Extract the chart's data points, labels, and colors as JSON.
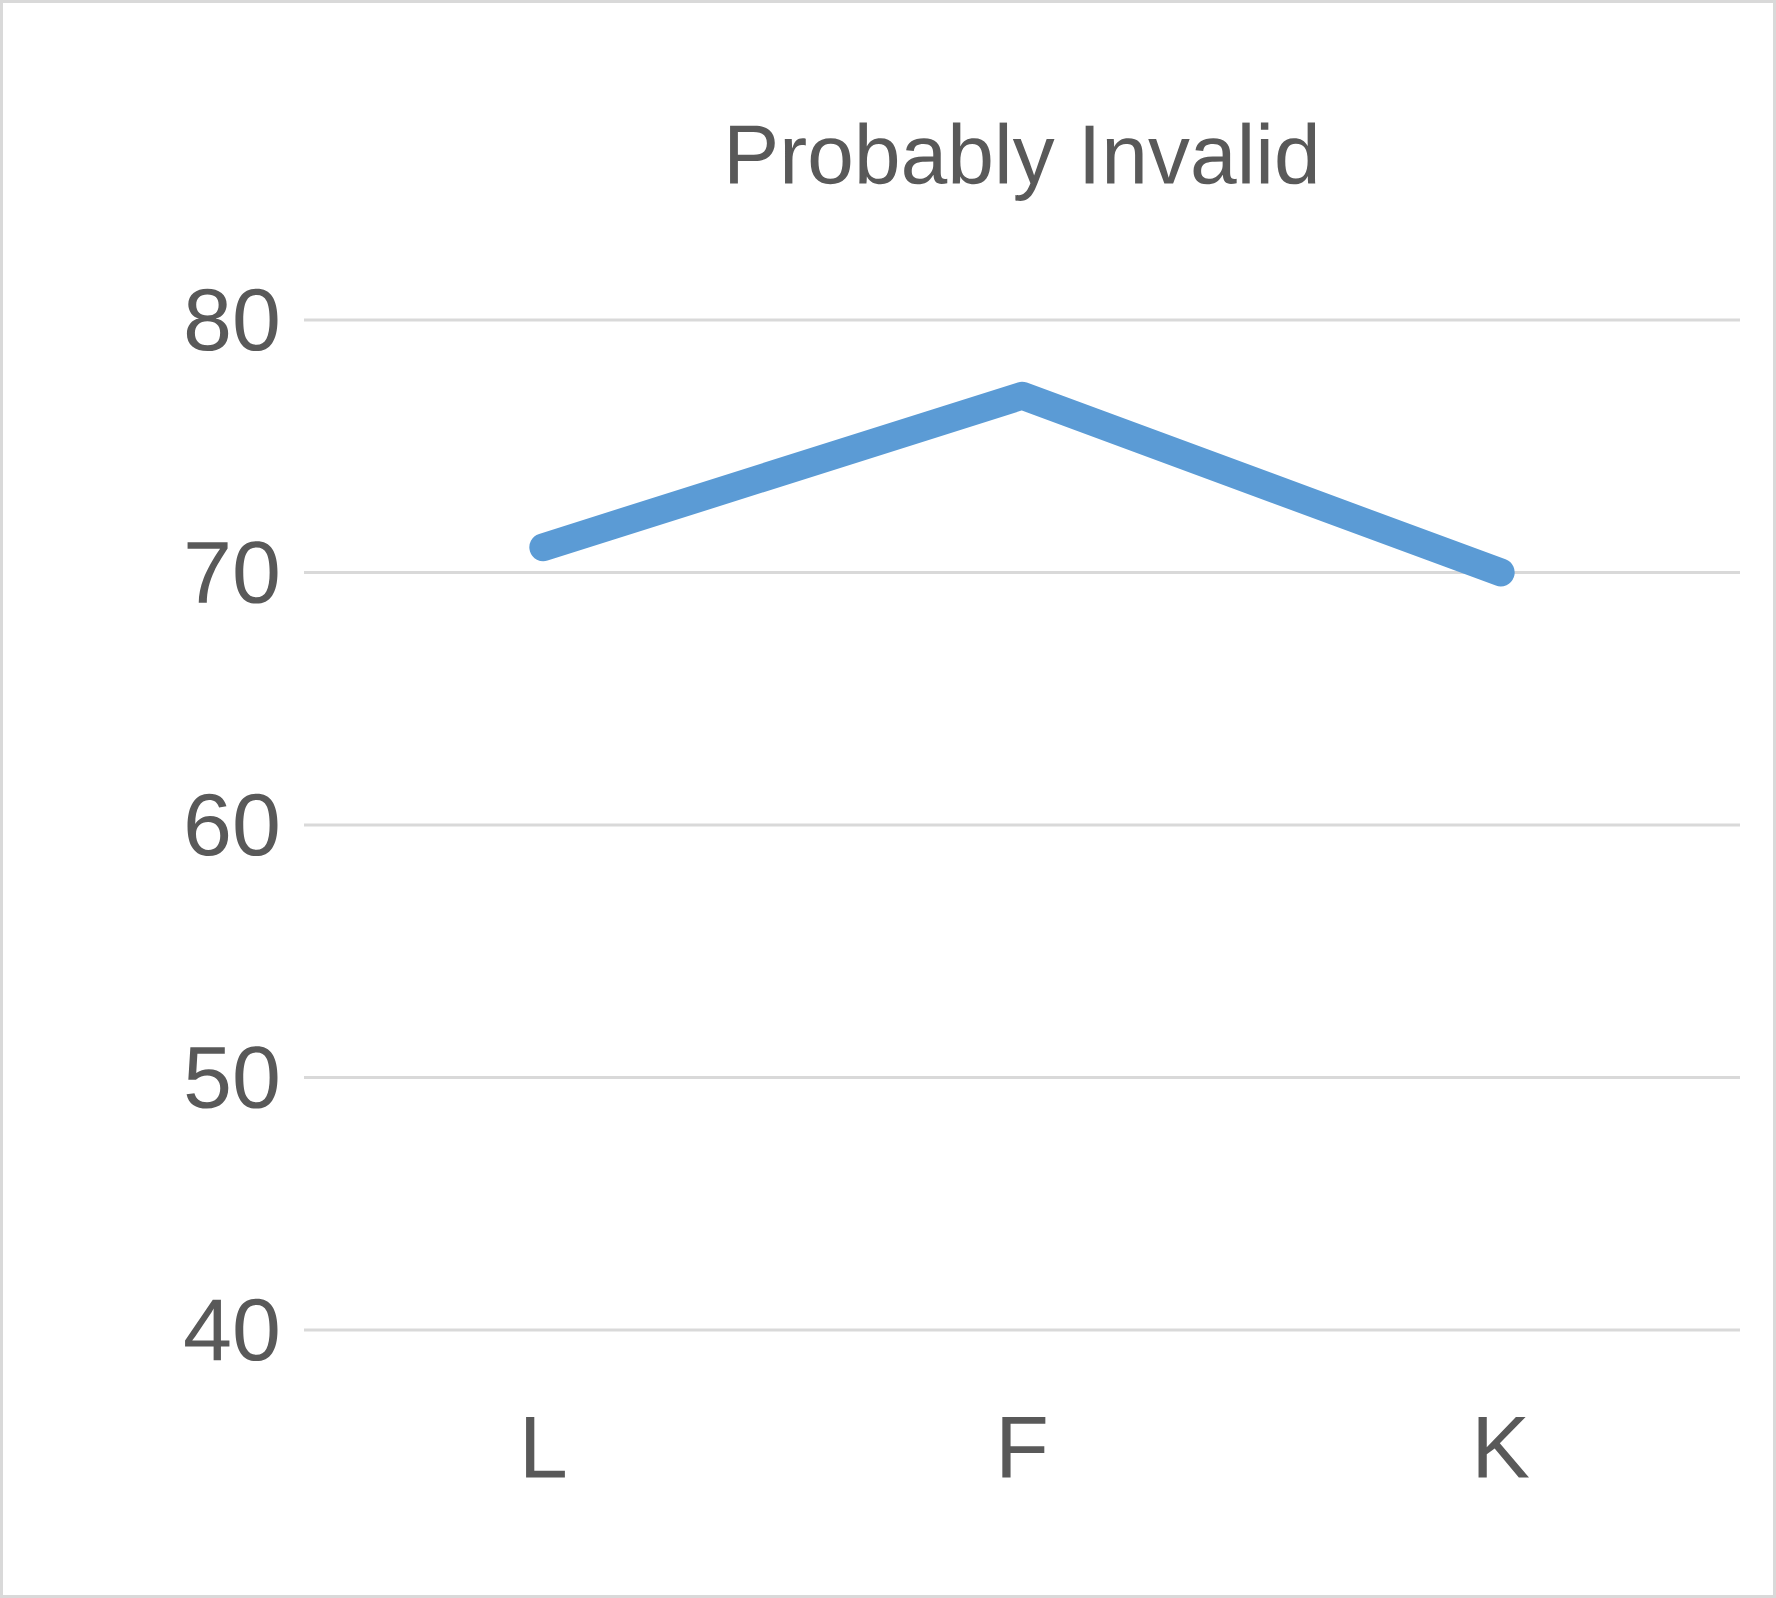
{
  "chart_data": {
    "type": "line",
    "title": "Probably Invalid",
    "categories": [
      "L",
      "F",
      "K"
    ],
    "values": [
      71,
      77,
      70
    ],
    "color": "#5b9bd5",
    "ylim": [
      40,
      80
    ],
    "yticks": [
      40,
      50,
      60,
      70,
      80
    ],
    "grid": "y"
  }
}
